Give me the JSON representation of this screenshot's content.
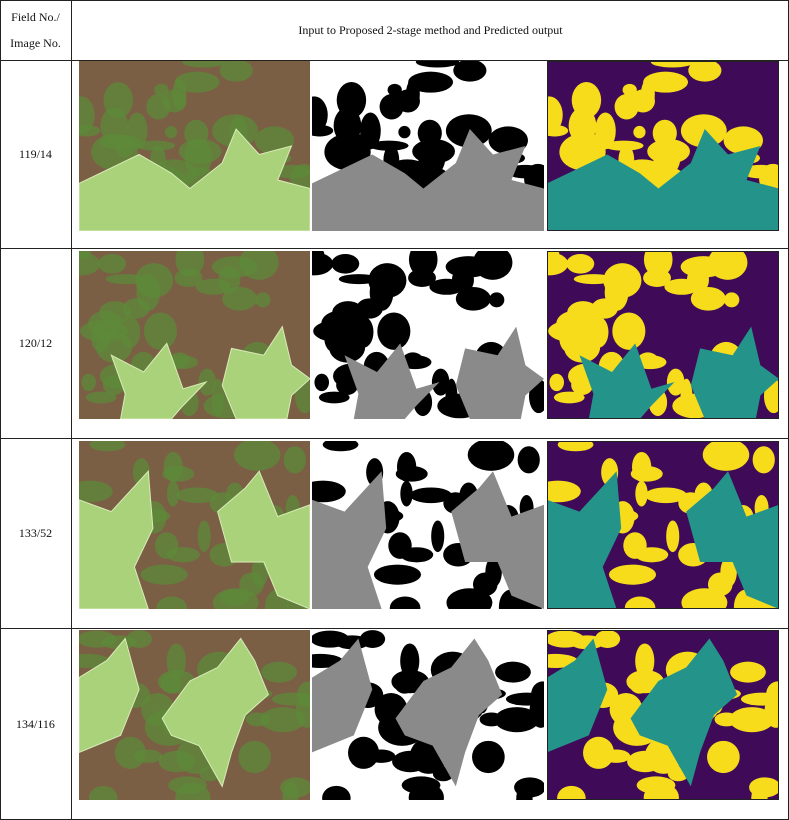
{
  "table": {
    "header": {
      "field_line1": "Field No./",
      "field_line2": "Image No.",
      "main": "Input to Proposed 2-stage method and Predicted output"
    },
    "rows": [
      {
        "label": "119/14"
      },
      {
        "label": "120/12"
      },
      {
        "label": "133/52"
      },
      {
        "label": "134/116"
      }
    ]
  },
  "colors": {
    "soil": "#7a5f45",
    "weed": "#5e8a3a",
    "crop": "#a9d27a",
    "mask_bg": "#ffffff",
    "mask_weed": "#000000",
    "mask_crop": "#8a8a8a",
    "pred_bg": "#3f0a58",
    "pred_weed": "#f7dc1c",
    "pred_crop": "#24948a"
  }
}
